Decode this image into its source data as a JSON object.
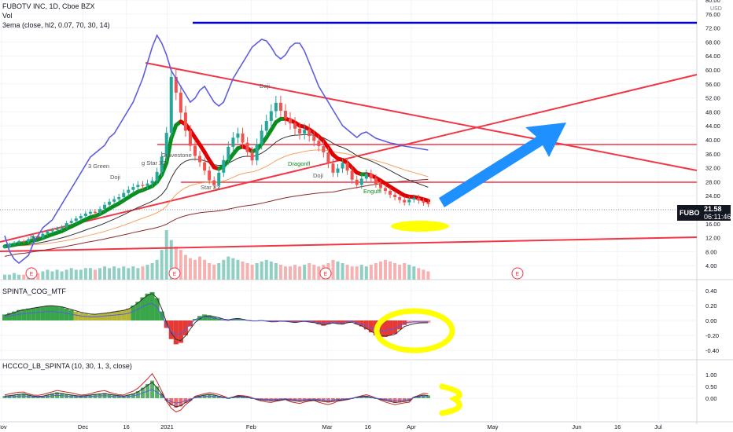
{
  "chart_data": [
    {
      "type": "candlestick",
      "title": "FUBOTV INC, 1D, Cboe BZX",
      "indicator_lines": [
        "Vol",
        "3ema (close, hl2, 0.07, 70, 30, 14)"
      ],
      "y_unit": "USD",
      "ylim": [
        0,
        80
      ],
      "y_ticks": [
        4,
        8,
        12,
        16,
        20,
        24,
        28,
        32,
        36,
        40,
        44,
        48,
        52,
        56,
        60,
        64,
        68,
        72,
        76,
        80
      ],
      "y_tick_labels": [
        "4.00",
        "8.00",
        "12.00",
        "16.00",
        "20.00",
        "24.00",
        "28.00",
        "32.00",
        "36.00",
        "40.00",
        "44.00",
        "48.00",
        "52.00",
        "56.00",
        "60.00",
        "64.00",
        "68.00",
        "72.00",
        "76.00",
        "80.00"
      ],
      "last_price": {
        "symbol": "FUBO",
        "value": "21.58",
        "countdown": "06:11:46"
      },
      "x_tick_labels": [
        {
          "label": "Nov",
          "day": 0
        },
        {
          "label": "Dec",
          "day": 30
        },
        {
          "label": "16",
          "day": 46
        },
        {
          "label": "2021",
          "day": 61
        },
        {
          "label": "Feb",
          "day": 92
        },
        {
          "label": "Mar",
          "day": 120
        },
        {
          "label": "16",
          "day": 135
        },
        {
          "label": "Apr",
          "day": 151
        },
        {
          "label": "May",
          "day": 181
        },
        {
          "label": "Jun",
          "day": 212
        },
        {
          "label": "16",
          "day": 227
        },
        {
          "label": "Jul",
          "day": 242
        }
      ],
      "annotations": [
        "Doji",
        "3 Green",
        "Doji",
        "Dragonfl",
        "Doji",
        "Engulfi",
        "Star X2",
        "g Star X2",
        "Gravestone",
        "Doji"
      ],
      "earnings_markers": [
        "E",
        "E",
        "E",
        "E"
      ],
      "candles_close": [
        9.5,
        10.2,
        10.6,
        11.0,
        10.8,
        11.6,
        12.4,
        12.0,
        13.1,
        13.8,
        14.2,
        14.6,
        15.0,
        16.2,
        16.8,
        17.5,
        18.2,
        18.9,
        19.4,
        19.1,
        20.2,
        21.4,
        22.3,
        23.0,
        23.6,
        24.8,
        25.7,
        26.5,
        27.1,
        26.8,
        27.5,
        28.3,
        30.8,
        35.2,
        42.0,
        58.0,
        53.5,
        47.8,
        42.6,
        38.3,
        35.4,
        33.6,
        31.2,
        28.4,
        27.0,
        30.6,
        34.2,
        38.0,
        40.6,
        41.8,
        39.2,
        36.5,
        34.1,
        38.8,
        42.6,
        45.4,
        48.2,
        50.6,
        48.3,
        46.1,
        44.7,
        43.2,
        41.8,
        42.9,
        41.1,
        39.7,
        38.2,
        36.4,
        33.2,
        30.6,
        31.8,
        33.4,
        31.2,
        28.6,
        27.1,
        28.9,
        30.3,
        29.0,
        27.4,
        26.2,
        25.4,
        24.3,
        23.6,
        22.8,
        22.1,
        22.9,
        23.4,
        22.6,
        22.0,
        21.6
      ],
      "volume_unit": "relative (scaled to price pane)",
      "volume_bars": [
        3,
        3,
        4,
        3,
        3,
        4,
        5,
        4,
        5,
        6,
        5,
        6,
        5,
        6,
        7,
        6,
        6,
        7,
        7,
        6,
        7,
        8,
        7,
        8,
        7,
        8,
        7,
        8,
        7,
        8,
        9,
        10,
        12,
        18,
        30,
        24,
        20,
        18,
        15,
        13,
        12,
        14,
        12,
        10,
        9,
        10,
        12,
        14,
        13,
        12,
        11,
        10,
        9,
        10,
        11,
        12,
        11,
        10,
        9,
        8,
        8,
        9,
        8,
        9,
        10,
        9,
        8,
        9,
        10,
        12,
        11,
        10,
        9,
        8,
        8,
        9,
        8,
        9,
        10,
        11,
        12,
        11,
        10,
        9,
        10,
        9,
        8,
        7,
        6,
        5
      ]
    },
    {
      "type": "area",
      "title": "SPINTA_COG_MTF",
      "ylim": [
        -0.45,
        0.45
      ],
      "y_ticks": [
        0.4,
        0.2,
        0,
        -0.2,
        -0.4
      ],
      "y_tick_labels": [
        "0.40",
        "0.20",
        "0.00",
        "-0.20",
        "-0.40"
      ],
      "values": [
        0.08,
        0.1,
        0.12,
        0.14,
        0.15,
        0.16,
        0.17,
        0.18,
        0.19,
        0.2,
        0.2,
        0.19,
        0.18,
        0.16,
        0.14,
        0.12,
        0.1,
        0.09,
        0.08,
        0.08,
        0.09,
        0.1,
        0.11,
        0.12,
        0.13,
        0.14,
        0.16,
        0.2,
        0.25,
        0.31,
        0.36,
        0.38,
        0.3,
        0.12,
        -0.1,
        -0.25,
        -0.32,
        -0.3,
        -0.2,
        -0.08,
        0.02,
        0.06,
        0.08,
        0.07,
        0.05,
        0.03,
        0.01,
        0.0,
        0.02,
        0.03,
        0.02,
        0.0,
        -0.01,
        -0.01,
        0.0,
        -0.01,
        -0.02,
        -0.02,
        -0.01,
        -0.01,
        -0.02,
        -0.03,
        -0.02,
        -0.01,
        -0.02,
        -0.03,
        -0.05,
        -0.07,
        -0.05,
        -0.03,
        -0.04,
        -0.05,
        -0.03,
        -0.02,
        -0.05,
        -0.08,
        -0.12,
        -0.16,
        -0.2,
        -0.22,
        -0.22,
        -0.2,
        -0.18,
        -0.12,
        -0.06,
        -0.04,
        -0.03,
        -0.03,
        -0.03,
        -0.03
      ]
    },
    {
      "type": "bar",
      "title": "HCCCO_LB_SPINTA (10, 30, 1, 3, close)",
      "ylim": [
        -0.6,
        1.3
      ],
      "y_ticks": [
        1.0,
        0.5,
        0.0
      ],
      "y_tick_labels": [
        "1.00",
        "0.50",
        "0.00"
      ],
      "values": [
        0.1,
        0.12,
        0.15,
        0.18,
        0.2,
        0.15,
        0.1,
        0.08,
        0.1,
        0.15,
        0.2,
        0.25,
        0.22,
        0.18,
        0.15,
        0.12,
        0.1,
        0.12,
        0.15,
        0.18,
        0.2,
        0.22,
        0.18,
        0.15,
        0.12,
        0.1,
        0.15,
        0.2,
        0.3,
        0.45,
        0.6,
        0.75,
        0.5,
        0.2,
        -0.1,
        -0.3,
        -0.4,
        -0.35,
        -0.2,
        -0.1,
        0.05,
        0.1,
        0.15,
        0.18,
        0.15,
        0.1,
        0.05,
        0.0,
        0.05,
        0.1,
        0.08,
        0.05,
        0.0,
        -0.05,
        -0.08,
        -0.1,
        -0.12,
        -0.1,
        -0.08,
        -0.05,
        -0.1,
        -0.12,
        -0.15,
        -0.12,
        -0.1,
        -0.08,
        -0.12,
        -0.15,
        -0.18,
        -0.15,
        -0.1,
        -0.08,
        -0.05,
        0.0,
        0.05,
        0.08,
        0.1,
        0.05,
        0.0,
        -0.05,
        -0.1,
        -0.15,
        -0.2,
        -0.18,
        -0.15,
        -0.12,
        0.05,
        0.1,
        0.15,
        0.12
      ]
    }
  ]
}
